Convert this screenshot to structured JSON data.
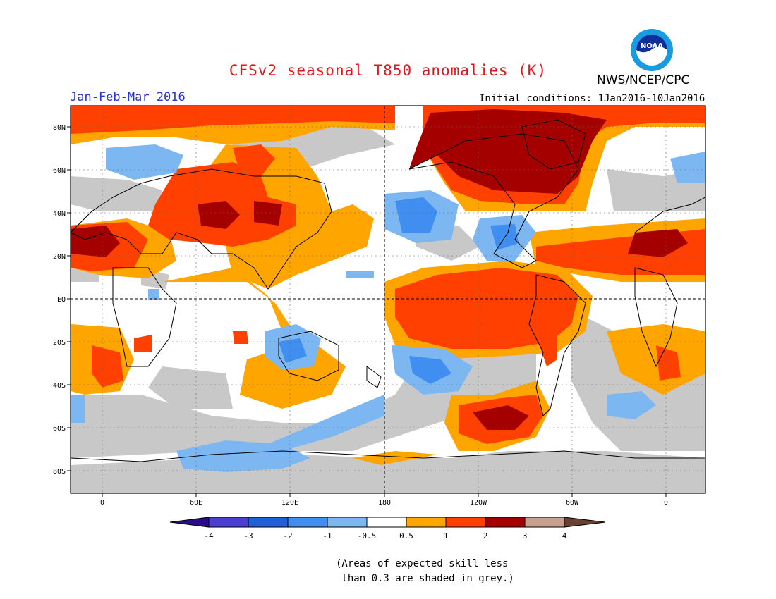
{
  "title": "CFSv2 seasonal T850 anomalies (K)",
  "agency": "NWS/NCEP/CPC",
  "logo_text": "NOAA",
  "period": "Jan-Feb-Mar 2016",
  "initial_conditions": "Initial conditions: 1Jan2016-10Jan2016",
  "map": {
    "lat_labels": [
      "80N",
      "60N",
      "40N",
      "20N",
      "EQ",
      "20S",
      "40S",
      "60S",
      "80S"
    ],
    "lon_labels": [
      "0",
      "60E",
      "120E",
      "180",
      "120W",
      "60W",
      "0"
    ]
  },
  "colorbar": {
    "labels": [
      "-4",
      "-3",
      "-2",
      "-1",
      "-0.5",
      "0.5",
      "1",
      "2",
      "3",
      "4"
    ],
    "colors": {
      "lt_minus4": "#2a0a8c",
      "minus4_to_minus3": "#4a3fd0",
      "minus3_to_minus2": "#1f5fd8",
      "minus2_to_minus1": "#3f8ef0",
      "minus1_to_minus05": "#7db7f2",
      "neutral": "#ffffff",
      "p05_to_1": "#ffa500",
      "p1_to_2": "#ff4000",
      "p2_to_3": "#a50000",
      "p3_to_4": "#c8a090",
      "gt_4": "#6b4030",
      "low_skill_grey": "#c8c8c8"
    }
  },
  "footnote": {
    "line1": "(Areas of expected skill less",
    "line2": " than 0.3 are shaded in grey.)"
  }
}
